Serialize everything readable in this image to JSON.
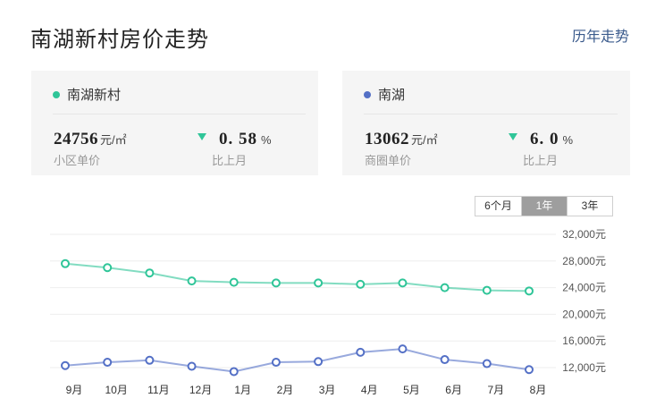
{
  "header": {
    "title": "南湖新村房价走势",
    "history_link": "历年走势"
  },
  "cards": [
    {
      "name": "南湖新村",
      "dot_color": "#2fc598",
      "price": "24756",
      "price_unit": "元/㎡",
      "price_label": "小区单价",
      "change": "0. 58",
      "change_unit": "%",
      "change_label": "比上月"
    },
    {
      "name": "南湖",
      "dot_color": "#5470c6",
      "price": "13062",
      "price_unit": "元/㎡",
      "price_label": "商圈单价",
      "change": "6. 0",
      "change_unit": "%",
      "change_label": "比上月"
    }
  ],
  "range_tabs": [
    {
      "label": "6个月",
      "active": false
    },
    {
      "label": "1年",
      "active": true
    },
    {
      "label": "3年",
      "active": false
    }
  ],
  "chart_data": {
    "type": "line",
    "categories": [
      "9月",
      "10月",
      "11月",
      "12月",
      "1月",
      "2月",
      "3月",
      "4月",
      "5月",
      "6月",
      "7月",
      "8月"
    ],
    "y_ticks": [
      "32,000元",
      "28,000元",
      "24,000元",
      "20,000元",
      "16,000元",
      "12,000元"
    ],
    "y_tick_values": [
      32000,
      28000,
      24000,
      20000,
      16000,
      12000
    ],
    "ylim": [
      12000,
      32000
    ],
    "series": [
      {
        "name": "南湖新村",
        "color": "#2fc598",
        "values": [
          27600,
          27000,
          26200,
          25000,
          24800,
          24700,
          24700,
          24500,
          24700,
          24000,
          23600,
          23500
        ]
      },
      {
        "name": "南湖",
        "color": "#5470c6",
        "values": [
          12300,
          12800,
          13100,
          12200,
          11400,
          12800,
          12900,
          14300,
          14800,
          13200,
          12600,
          11700
        ]
      }
    ]
  }
}
